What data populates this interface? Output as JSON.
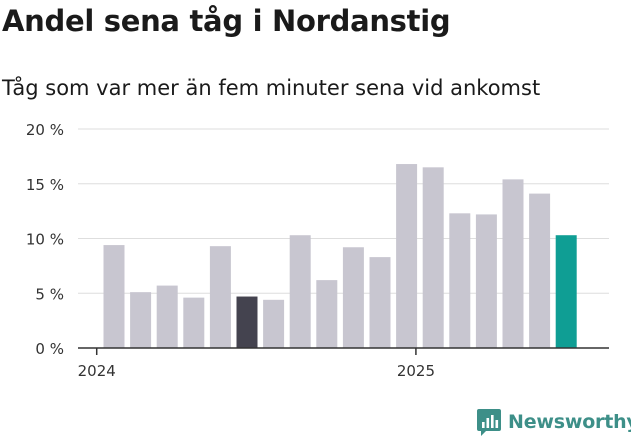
{
  "header": {
    "title": "Andel sena tåg i Nordanstig",
    "subtitle": "Tåg som var mer än fem minuter sena vid ankomst"
  },
  "brand": {
    "name": "Newsworthy",
    "icon": "newsworthy-logo-icon"
  },
  "colors": {
    "bar_default": "#c8c6d0",
    "bar_highlight_dark": "#44434f",
    "bar_highlight_latest": "#0f9e94",
    "grid": "#dedede",
    "axis": "#333333",
    "brand": "#3d8f88"
  },
  "chart_data": {
    "type": "bar",
    "title": "Andel sena tåg i Nordanstig",
    "subtitle": "Tåg som var mer än fem minuter sena vid ankomst",
    "y_ticks": [
      "0 %",
      "5 %",
      "10 %",
      "15 %",
      "20 %"
    ],
    "ylim": [
      0,
      20
    ],
    "x_tick_labels": [
      {
        "label": "2024",
        "index": -0.65
      },
      {
        "label": "2025",
        "index": 11.35
      }
    ],
    "grid": true,
    "values": [
      9.4,
      5.1,
      5.7,
      4.6,
      9.3,
      4.7,
      4.4,
      10.3,
      6.2,
      9.2,
      8.3,
      16.8,
      16.5,
      12.3,
      12.2,
      15.4,
      14.1,
      10.3
    ],
    "highlight": {
      "5": "dark",
      "17": "latest"
    }
  }
}
